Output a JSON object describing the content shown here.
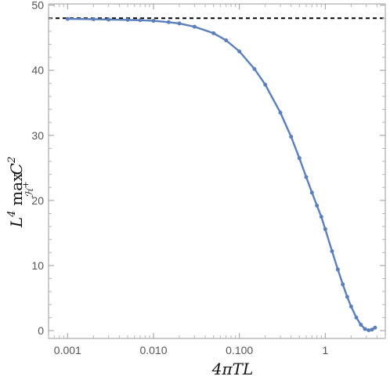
{
  "chart_data": {
    "type": "scatter",
    "title": "",
    "xlabel": "4πTL",
    "ylabel": {
      "prefix": "L",
      "prefix_exp": "4",
      "operator": "max",
      "subscript": "ℋ",
      "subscript_sup": "+",
      "symbol": "C",
      "symbol_exp": "2"
    },
    "xscale": "log",
    "xlim": [
      0.0006,
      5
    ],
    "ylim": [
      -1.2,
      50.2
    ],
    "xticks": [
      {
        "value": 0.001,
        "label": "0.001"
      },
      {
        "value": 0.01,
        "label": "0.010"
      },
      {
        "value": 0.1,
        "label": "0.100"
      },
      {
        "value": 1,
        "label": "1"
      }
    ],
    "yticks": [
      {
        "value": 0,
        "label": "0"
      },
      {
        "value": 10,
        "label": "10"
      },
      {
        "value": 20,
        "label": "20"
      },
      {
        "value": 30,
        "label": "30"
      },
      {
        "value": 40,
        "label": "40"
      },
      {
        "value": 50,
        "label": "50"
      }
    ],
    "reference_line": {
      "y": 48,
      "style": "dashed",
      "color": "#000000"
    },
    "series": [
      {
        "color": "#5b7fba",
        "points": [
          [
            0.001,
            47.9
          ],
          [
            0.002,
            47.85
          ],
          [
            0.003,
            47.8
          ],
          [
            0.005,
            47.75
          ],
          [
            0.007,
            47.7
          ],
          [
            0.01,
            47.6
          ],
          [
            0.015,
            47.4
          ],
          [
            0.02,
            47.2
          ],
          [
            0.03,
            46.7
          ],
          [
            0.05,
            45.7
          ],
          [
            0.07,
            44.6
          ],
          [
            0.1,
            42.9
          ],
          [
            0.15,
            40.2
          ],
          [
            0.2,
            37.8
          ],
          [
            0.3,
            33.5
          ],
          [
            0.4,
            29.8
          ],
          [
            0.5,
            26.5
          ],
          [
            0.6,
            23.6
          ],
          [
            0.7,
            21.2
          ],
          [
            0.8,
            19.2
          ],
          [
            0.9,
            17.5
          ],
          [
            1.0,
            15.6
          ],
          [
            1.2,
            12.2
          ],
          [
            1.4,
            9.4
          ],
          [
            1.6,
            7.1
          ],
          [
            1.8,
            5.2
          ],
          [
            2.0,
            3.7
          ],
          [
            2.3,
            2.0
          ],
          [
            2.6,
            0.9
          ],
          [
            2.9,
            0.25
          ],
          [
            3.2,
            0.05
          ],
          [
            3.5,
            0.15
          ],
          [
            3.8,
            0.45
          ]
        ]
      }
    ]
  }
}
